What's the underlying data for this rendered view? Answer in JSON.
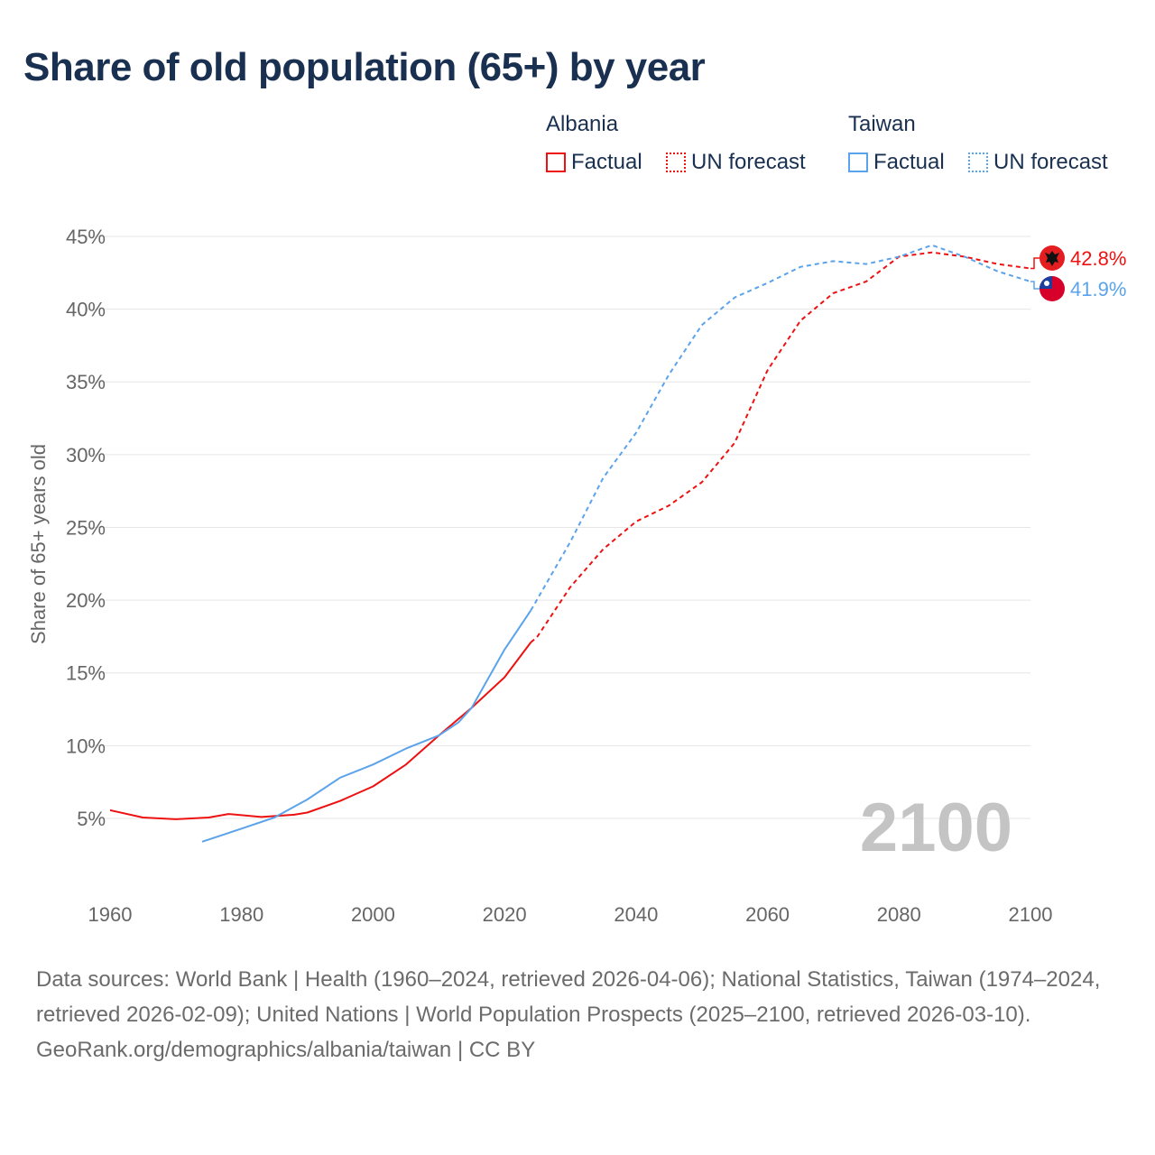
{
  "title": "Share of old population (65+) by year",
  "legend": {
    "groups": [
      {
        "name": "Albania",
        "color": "#ee1111",
        "factual": "Factual",
        "forecast": "UN forecast"
      },
      {
        "name": "Taiwan",
        "color": "#5ba3ea",
        "factual": "Factual",
        "forecast": "UN forecast"
      }
    ]
  },
  "year_watermark": "2100",
  "footer": {
    "sources": "Data sources: World Bank | Health (1960–2024, retrieved 2026-04-06); National Statistics, Taiwan (1974–2024, retrieved 2026-02-09); United Nations | World Population Prospects (2025–2100, retrieved 2026-03-10).",
    "credit": "GeoRank.org/demographics/albania/taiwan | CC BY"
  },
  "chart_data": {
    "type": "line",
    "title": "Share of old population (65+) by year",
    "xlabel": "",
    "ylabel": "Share of 65+ years old",
    "xlim": [
      1960,
      2100
    ],
    "ylim": [
      0,
      45
    ],
    "xticks": [
      "1960",
      "1980",
      "2000",
      "2020",
      "2040",
      "2060",
      "2080",
      "2100"
    ],
    "yticks": [
      "5%",
      "10%",
      "15%",
      "20%",
      "25%",
      "30%",
      "35%",
      "40%",
      "45%"
    ],
    "grid": true,
    "series": [
      {
        "name": "Albania",
        "color": "#ee1111",
        "end_label": "42.8%",
        "factual": {
          "x": [
            1960,
            1965,
            1970,
            1975,
            1978,
            1983,
            1988,
            1990,
            1995,
            2000,
            2005,
            2010,
            2015,
            2020,
            2024
          ],
          "y": [
            5.56,
            5.06,
            4.94,
            5.06,
            5.3,
            5.1,
            5.25,
            5.4,
            6.2,
            7.2,
            8.7,
            10.7,
            12.6,
            14.7,
            17.1
          ]
        },
        "forecast": {
          "x": [
            2024,
            2025,
            2030,
            2035,
            2040,
            2045,
            2050,
            2055,
            2060,
            2065,
            2070,
            2075,
            2080,
            2085,
            2090,
            2095,
            2100
          ],
          "y": [
            17.1,
            17.5,
            20.9,
            23.5,
            25.4,
            26.5,
            28.1,
            30.8,
            35.8,
            39.2,
            41.1,
            41.9,
            43.6,
            43.9,
            43.6,
            43.1,
            42.8
          ]
        }
      },
      {
        "name": "Taiwan",
        "color": "#5ba3ea",
        "end_label": "41.9%",
        "factual": {
          "x": [
            1974,
            1980,
            1985,
            1990,
            1995,
            2000,
            2005,
            2010,
            2013,
            2015,
            2020,
            2024
          ],
          "y": [
            3.4,
            4.3,
            5.06,
            6.3,
            7.8,
            8.7,
            9.8,
            10.7,
            11.6,
            12.6,
            16.6,
            19.3
          ]
        },
        "forecast": {
          "x": [
            2024,
            2030,
            2035,
            2040,
            2045,
            2050,
            2055,
            2060,
            2065,
            2070,
            2075,
            2080,
            2085,
            2090,
            2095,
            2100
          ],
          "y": [
            19.3,
            24.0,
            28.4,
            31.5,
            35.5,
            38.9,
            40.8,
            41.8,
            42.9,
            43.3,
            43.1,
            43.6,
            44.4,
            43.6,
            42.6,
            41.9
          ]
        }
      }
    ]
  }
}
